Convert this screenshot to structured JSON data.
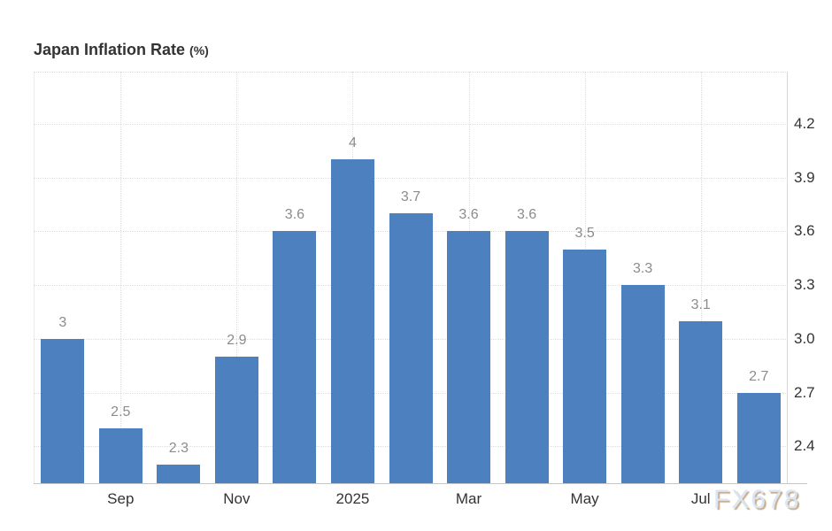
{
  "chart_data": {
    "type": "bar",
    "title": "Japan Inflation Rate",
    "title_unit": "(%)",
    "values": [
      3,
      2.5,
      2.3,
      2.9,
      3.6,
      4,
      3.7,
      3.6,
      3.6,
      3.5,
      3.3,
      3.1,
      2.7
    ],
    "bar_labels": [
      "3",
      "2.5",
      "2.3",
      "2.9",
      "3.6",
      "4",
      "3.7",
      "3.6",
      "3.6",
      "3.5",
      "3.3",
      "3.1",
      "2.7"
    ],
    "x_ticks": [
      {
        "bar_index": 1,
        "label": "Sep"
      },
      {
        "bar_index": 3,
        "label": "Nov"
      },
      {
        "bar_index": 5,
        "label": "2025"
      },
      {
        "bar_index": 7,
        "label": "Mar"
      },
      {
        "bar_index": 9,
        "label": "May"
      },
      {
        "bar_index": 11,
        "label": "Jul"
      }
    ],
    "y_ticks": [
      {
        "value": 4.2,
        "label": "4.2"
      },
      {
        "value": 3.9,
        "label": "3.9"
      },
      {
        "value": 3.6,
        "label": "3.6"
      },
      {
        "value": 3.3,
        "label": "3.3"
      },
      {
        "value": 3.0,
        "label": "3.0"
      },
      {
        "value": 2.7,
        "label": "2.7"
      },
      {
        "value": 2.4,
        "label": "2.4"
      }
    ],
    "ylim": [
      2.19,
      4.49
    ],
    "grid": "dotted horizontal and vertical lines at ticks",
    "legend": "none",
    "bar_color": "#4c80bf",
    "bar_label_color": "#8c8c8c",
    "axis_text_color": "#333333"
  },
  "watermark": "FX678"
}
